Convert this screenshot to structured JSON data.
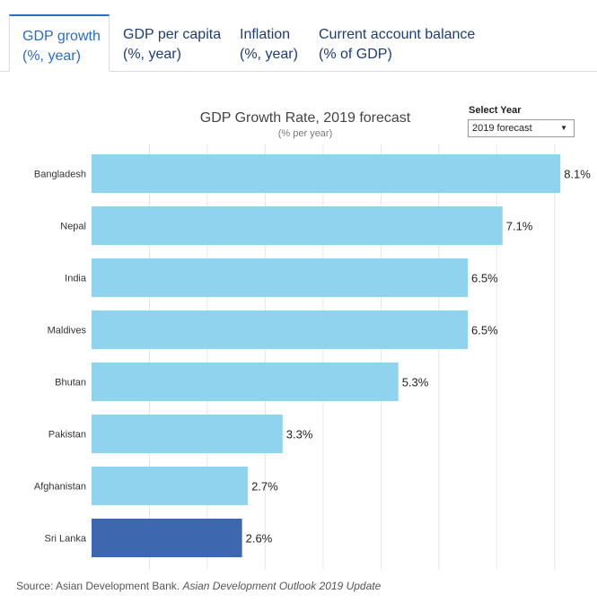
{
  "tabs": [
    {
      "title": "GDP growth",
      "unit": "(%, year)"
    },
    {
      "title": "GDP per capita",
      "unit": "(%, year)"
    },
    {
      "title": "Inflation",
      "unit": "(%, year)"
    },
    {
      "title": "Current account balance",
      "unit": "(% of GDP)"
    }
  ],
  "active_tab": 0,
  "select": {
    "label": "Select Year",
    "value": "2019 forecast",
    "caret": "▼"
  },
  "source": {
    "prefix": "Source: Asian Development Bank.",
    "publication": "Asian Development Outlook 2019 Update"
  },
  "colors": {
    "bar": "#8fd3ee",
    "highlight_bar": "#3d68b0",
    "gridline": "#e6e6e6",
    "active_tab": "#2a6ebb",
    "tab_text": "#1f3c73"
  },
  "chart_data": {
    "type": "bar",
    "orientation": "horizontal",
    "title": "GDP Growth Rate, 2019 forecast",
    "subtitle": "(% per year)",
    "categories": [
      "Bangladesh",
      "Nepal",
      "India",
      "Maldives",
      "Bhutan",
      "Pakistan",
      "Afghanistan",
      "Sri Lanka"
    ],
    "values": [
      8.1,
      7.1,
      6.5,
      6.5,
      5.3,
      3.3,
      2.7,
      2.6
    ],
    "value_labels": [
      "8.1%",
      "7.1%",
      "6.5%",
      "6.5%",
      "5.3%",
      "3.3%",
      "2.7%",
      "2.6%"
    ],
    "highlighted": [
      "Sri Lanka"
    ],
    "xlim": [
      0,
      8.5
    ],
    "grid": true
  }
}
